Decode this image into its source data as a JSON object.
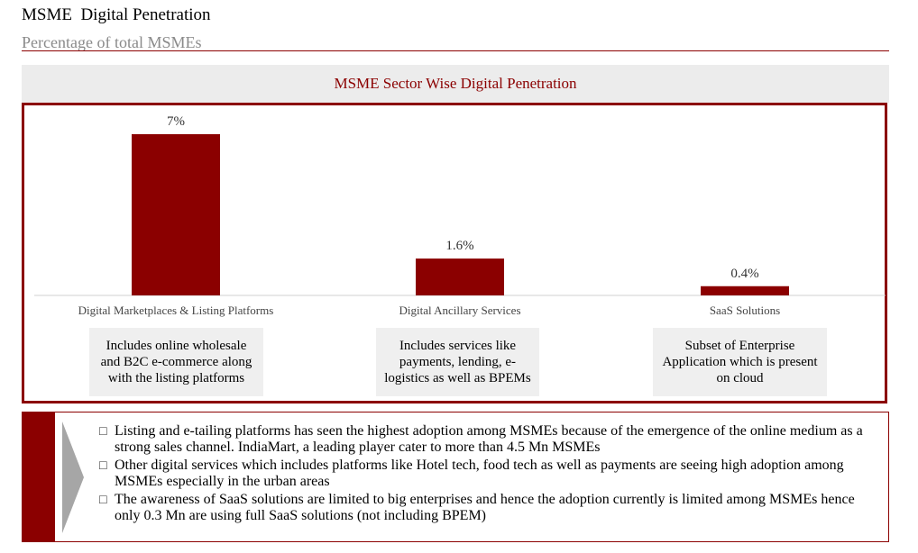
{
  "header": {
    "title": "MSME  Digital Penetration",
    "subtitle": "Percentage of total MSMEs"
  },
  "chart_panel": {
    "title": "MSME Sector Wise Digital Penetration"
  },
  "chart_data": {
    "type": "bar",
    "title": "MSME Sector Wise Digital Penetration",
    "categories": [
      "Digital Marketplaces & Listing Platforms",
      "Digital Ancillary Services",
      "SaaS Solutions"
    ],
    "values": [
      7,
      1.6,
      0.4
    ],
    "value_labels": [
      "7%",
      "1.6%",
      "0.4%"
    ],
    "ylim": [
      0,
      7
    ],
    "grid": false,
    "bar_color": "#8b0000"
  },
  "descriptions": [
    "Includes online wholesale and B2C e-commerce along with the listing platforms",
    "Includes services like payments, lending, e-logistics as well as BPEMs",
    "Subset of Enterprise Application which is present on cloud"
  ],
  "bullets": [
    "Listing and e-tailing platforms has seen the highest adoption among MSMEs because of the emergence of the online medium as a strong sales channel. IndiaMart, a leading player cater to more than 4.5 Mn MSMEs",
    "Other digital services which includes platforms like Hotel tech, food tech as well as payments are seeing high adoption among MSMEs especially in the urban areas",
    "The awareness of SaaS solutions are limited to big enterprises and hence the adoption currently is limited among MSMEs hence only 0.3 Mn are using full SaaS solutions (not including  BPEM)"
  ],
  "colors": {
    "accent": "#8b0000",
    "panel_background": "#ececec",
    "chevron": "#a6a6a6"
  }
}
